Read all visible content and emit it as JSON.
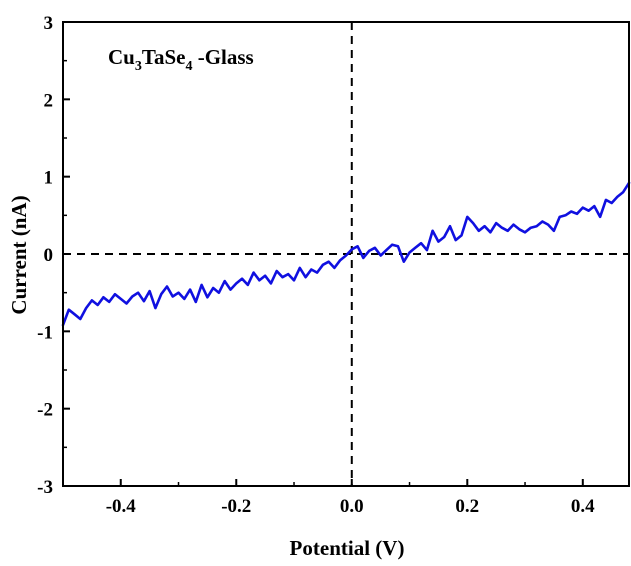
{
  "chart_data": {
    "type": "line",
    "title": "",
    "annotation": {
      "text": "Cu",
      "sub1": "3",
      "mid": "TaSe",
      "sub2": "4",
      "tail": " -Glass"
    },
    "xlabel": "Potential (V)",
    "ylabel": "Current (nA)",
    "xlim": [
      -0.5,
      0.48
    ],
    "ylim": [
      -3,
      3
    ],
    "x_ticks": [
      -0.4,
      -0.2,
      0.0,
      0.2,
      0.4
    ],
    "x_tick_labels": [
      "-0.4",
      "-0.2",
      "0.0",
      "0.2",
      "0.4"
    ],
    "y_ticks": [
      -3,
      -2,
      -1,
      0,
      1,
      2,
      3
    ],
    "y_tick_labels": [
      "-3",
      "-2",
      "-1",
      "0",
      "1",
      "2",
      "3"
    ],
    "reference_lines": {
      "vertical_x": 0.0,
      "horizontal_y": 0.0,
      "style": "dashed"
    },
    "grid": false,
    "legend": "none",
    "series": [
      {
        "color": "#1010e0",
        "x": [
          -0.5,
          -0.49,
          -0.48,
          -0.47,
          -0.46,
          -0.45,
          -0.44,
          -0.43,
          -0.42,
          -0.41,
          -0.4,
          -0.39,
          -0.38,
          -0.37,
          -0.36,
          -0.35,
          -0.34,
          -0.33,
          -0.32,
          -0.31,
          -0.3,
          -0.29,
          -0.28,
          -0.27,
          -0.26,
          -0.25,
          -0.24,
          -0.23,
          -0.22,
          -0.21,
          -0.2,
          -0.19,
          -0.18,
          -0.17,
          -0.16,
          -0.15,
          -0.14,
          -0.13,
          -0.12,
          -0.11,
          -0.1,
          -0.09,
          -0.08,
          -0.07,
          -0.06,
          -0.05,
          -0.04,
          -0.03,
          -0.02,
          -0.01,
          0.0,
          0.01,
          0.02,
          0.03,
          0.04,
          0.05,
          0.06,
          0.07,
          0.08,
          0.09,
          0.1,
          0.11,
          0.12,
          0.13,
          0.14,
          0.15,
          0.16,
          0.17,
          0.18,
          0.19,
          0.2,
          0.21,
          0.22,
          0.23,
          0.24,
          0.25,
          0.26,
          0.27,
          0.28,
          0.29,
          0.3,
          0.31,
          0.32,
          0.33,
          0.34,
          0.35,
          0.36,
          0.37,
          0.38,
          0.39,
          0.4,
          0.41,
          0.42,
          0.43,
          0.44,
          0.45,
          0.46,
          0.47,
          0.48
        ],
        "y": [
          -0.92,
          -0.72,
          -0.78,
          -0.84,
          -0.7,
          -0.6,
          -0.66,
          -0.56,
          -0.62,
          -0.52,
          -0.58,
          -0.64,
          -0.55,
          -0.5,
          -0.61,
          -0.48,
          -0.7,
          -0.52,
          -0.42,
          -0.55,
          -0.5,
          -0.58,
          -0.46,
          -0.62,
          -0.4,
          -0.56,
          -0.44,
          -0.5,
          -0.35,
          -0.46,
          -0.38,
          -0.32,
          -0.4,
          -0.24,
          -0.34,
          -0.28,
          -0.38,
          -0.22,
          -0.3,
          -0.26,
          -0.34,
          -0.18,
          -0.3,
          -0.2,
          -0.24,
          -0.14,
          -0.1,
          -0.18,
          -0.08,
          -0.02,
          0.06,
          0.1,
          -0.05,
          0.04,
          0.08,
          -0.02,
          0.05,
          0.12,
          0.1,
          -0.1,
          0.02,
          0.08,
          0.14,
          0.05,
          0.3,
          0.16,
          0.22,
          0.36,
          0.18,
          0.24,
          0.48,
          0.4,
          0.3,
          0.36,
          0.28,
          0.4,
          0.34,
          0.3,
          0.38,
          0.32,
          0.28,
          0.34,
          0.36,
          0.42,
          0.38,
          0.3,
          0.48,
          0.5,
          0.55,
          0.52,
          0.6,
          0.56,
          0.62,
          0.48,
          0.7,
          0.66,
          0.74,
          0.8,
          0.92
        ]
      }
    ]
  }
}
